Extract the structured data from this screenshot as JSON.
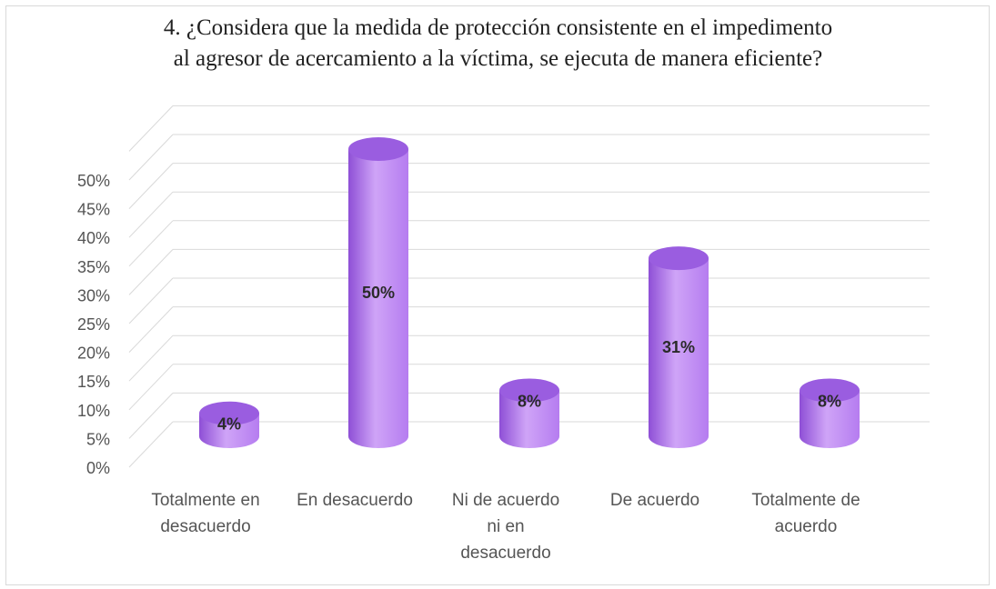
{
  "chart_data": {
    "type": "bar",
    "title_lines": [
      "4. ¿Considera que la medida de protección consistente en el impedimento",
      "al agresor de acercamiento a la víctima, se ejecuta de manera eficiente?"
    ],
    "categories": [
      [
        "Totalmente en",
        "desacuerdo"
      ],
      [
        "En desacuerdo"
      ],
      [
        "Ni de acuerdo",
        "ni en",
        "desacuerdo"
      ],
      [
        "De acuerdo"
      ],
      [
        "Totalmente de",
        "acuerdo"
      ]
    ],
    "values": [
      4,
      50,
      8,
      31,
      8
    ],
    "data_labels": [
      "4%",
      "50%",
      "8%",
      "31%",
      "8%"
    ],
    "yticks": [
      "0%",
      "5%",
      "10%",
      "15%",
      "20%",
      "25%",
      "30%",
      "35%",
      "40%",
      "45%",
      "50%"
    ],
    "ylim": [
      0,
      50
    ],
    "grid": true,
    "legend": "none",
    "style": "3d-cylinder",
    "colors": {
      "bar": "#b57cf0",
      "bar_dark": "#8e4fd6",
      "bar_light": "#cfa4f7",
      "bar_top": "#9a5de0",
      "grid": "#d9d9d9"
    }
  }
}
